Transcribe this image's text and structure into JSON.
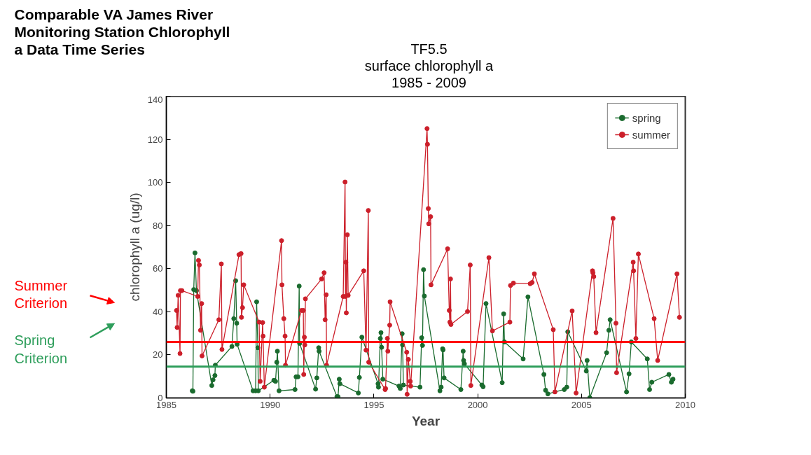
{
  "chart_data": {
    "type": "line",
    "title": "Comparable VA James River\nMonitoring Station Chlorophyll\na Data Time Series",
    "subtitle": "TF5.5\nsurface chlorophyll a\n1985 - 2009",
    "xlabel": "Year",
    "ylabel": "chlorophyll a (ug/l)",
    "xlim": [
      1985,
      2010
    ],
    "xticks": [
      1985,
      1990,
      1995,
      2000,
      2005,
      2010
    ],
    "ylim": [
      0,
      140
    ],
    "yticks": [
      0,
      20,
      40,
      60,
      80,
      100,
      120,
      140
    ],
    "grid": false,
    "legend": "top right",
    "marker": "circle",
    "line_style": "solid",
    "series": [
      {
        "name": "spring",
        "color": "#1a6b2e",
        "x": [
          1986.25,
          1986.28,
          1986.32,
          1986.38,
          1986.45,
          1987.19,
          1987.25,
          1987.34,
          1987.36,
          1988.16,
          1988.25,
          1988.34,
          1988.39,
          1988.41,
          1989.18,
          1989.3,
          1989.35,
          1989.41,
          1989.43,
          1990.18,
          1990.26,
          1990.32,
          1990.35,
          1990.43,
          1991.2,
          1991.25,
          1991.34,
          1991.4,
          1991.42,
          1992.19,
          1992.25,
          1992.34,
          1992.36,
          1993.22,
          1993.27,
          1993.33,
          1993.36,
          1994.25,
          1994.3,
          1994.42,
          1995.2,
          1995.22,
          1995.31,
          1995.34,
          1995.37,
          1995.43,
          1996.21,
          1996.27,
          1996.36,
          1996.38,
          1996.42,
          1997.22,
          1997.3,
          1997.34,
          1997.39,
          1997.43,
          1998.18,
          1998.24,
          1998.31,
          1998.33,
          1998.38,
          1999.19,
          1999.3,
          1999.32,
          1999.36,
          2000.2,
          2000.26,
          2000.4,
          2001.18,
          2001.25,
          2001.29,
          2002.19,
          2002.42,
          2003.19,
          2003.27,
          2003.38,
          2004.17,
          2004.29,
          2004.34,
          2005.23,
          2005.27,
          2005.4,
          2006.21,
          2006.32,
          2006.38,
          2007.17,
          2007.29,
          2007.4,
          2008.17,
          2008.28,
          2008.39,
          2009.21,
          2009.33,
          2009.41
        ],
        "values": [
          3.3,
          3.1,
          50.3,
          67.3,
          49.8,
          5.8,
          8.4,
          10.4,
          15.2,
          23.9,
          36.8,
          54.4,
          34.7,
          24.9,
          3.3,
          3.3,
          44.6,
          23.3,
          3.3,
          8.2,
          7.7,
          16.6,
          21.7,
          3.3,
          3.9,
          9.8,
          9.8,
          51.9,
          25.3,
          4.1,
          9.3,
          23.3,
          21.7,
          0.6,
          0.6,
          8.7,
          6.6,
          2.3,
          9.5,
          28.2,
          6.6,
          5,
          27.6,
          30.3,
          23.5,
          8.7,
          5.5,
          4.4,
          29.8,
          24.6,
          6,
          5,
          27.9,
          24.4,
          59.5,
          47.3,
          3.3,
          5,
          22.8,
          22.3,
          9.3,
          3.9,
          21.7,
          17.4,
          15.8,
          6,
          5.2,
          43.8,
          7.1,
          39,
          26,
          18.1,
          46.9,
          10.9,
          3.6,
          1.9,
          3.9,
          5,
          30.7,
          12.5,
          17.4,
          0.1,
          21,
          31.4,
          36.3,
          2.8,
          11.2,
          26,
          18.1,
          3.9,
          7.3,
          10.9,
          7.3,
          8.7
        ]
      },
      {
        "name": "summer",
        "color": "#cc1f2a",
        "x": [
          1985.49,
          1985.52,
          1985.57,
          1985.66,
          1985.68,
          1985.75,
          1986.51,
          1986.55,
          1986.59,
          1986.65,
          1986.7,
          1986.72,
          1987.53,
          1987.65,
          1987.68,
          1988.5,
          1988.6,
          1988.62,
          1988.67,
          1988.73,
          1989.47,
          1989.52,
          1989.64,
          1989.66,
          1989.72,
          1990.55,
          1990.57,
          1990.66,
          1990.72,
          1990.74,
          1991.51,
          1991.6,
          1991.62,
          1991.65,
          1991.67,
          1991.7,
          1992.48,
          1992.6,
          1992.65,
          1992.7,
          1992.72,
          1993.52,
          1993.61,
          1993.63,
          1993.65,
          1993.67,
          1993.72,
          1993.76,
          1994.51,
          1994.62,
          1994.73,
          1994.75,
          1995.54,
          1995.56,
          1995.65,
          1995.67,
          1995.76,
          1995.78,
          1996.58,
          1996.6,
          1996.66,
          1996.75,
          1996.77,
          1997.56,
          1997.58,
          1997.62,
          1997.64,
          1997.73,
          1997.75,
          1998.55,
          1998.63,
          1998.66,
          1998.69,
          1998.71,
          1999.51,
          1999.64,
          1999.67,
          2000.54,
          2000.71,
          2001.55,
          2001.58,
          2001.72,
          2002.53,
          2002.62,
          2002.73,
          2003.64,
          2003.72,
          2004.55,
          2004.74,
          2005.53,
          2005.55,
          2005.59,
          2005.7,
          2006.52,
          2006.66,
          2006.69,
          2007.49,
          2007.51,
          2007.62,
          2007.74,
          2008.5,
          2008.67,
          2009.6,
          2009.72
        ],
        "values": [
          40.6,
          32.7,
          47.6,
          20.6,
          49.8,
          49.8,
          47.1,
          63.8,
          61.7,
          31.4,
          43.8,
          19.5,
          36.3,
          62.2,
          22.5,
          66.5,
          67,
          37.4,
          41.9,
          52.5,
          35.2,
          7.7,
          35,
          28.7,
          5,
          73,
          52.5,
          36.8,
          28.7,
          15.2,
          40.6,
          40.6,
          10.9,
          28.2,
          24.6,
          46,
          55.2,
          58.1,
          36.3,
          47.9,
          15.2,
          47.1,
          100.2,
          47.1,
          63,
          39.5,
          75.7,
          47.6,
          59,
          22.2,
          87,
          16.6,
          3.9,
          4.4,
          27.6,
          21.7,
          33.8,
          44.6,
          21.2,
          1.7,
          17.9,
          7.7,
          5.5,
          125,
          117.7,
          87.9,
          80.8,
          84.1,
          52.5,
          69.2,
          40.6,
          35.2,
          55.2,
          34.1,
          40.1,
          61.7,
          5.8,
          65.1,
          31.1,
          35.2,
          52.2,
          53.3,
          53,
          53.6,
          57.6,
          31.7,
          2.8,
          40.4,
          2.3,
          59,
          58.1,
          56.3,
          30.3,
          83.3,
          34.7,
          11.7,
          63,
          59,
          27.6,
          66.8,
          36.8,
          17.4,
          57.6,
          37.4
        ]
      }
    ],
    "ref_lines": [
      {
        "axis": "y",
        "value": 26,
        "label": "Summer\nCriterion",
        "color": "#ff0000"
      },
      {
        "axis": "y",
        "value": 14.5,
        "label": "Spring\nCriterion",
        "color": "#2e9e5b"
      }
    ]
  }
}
